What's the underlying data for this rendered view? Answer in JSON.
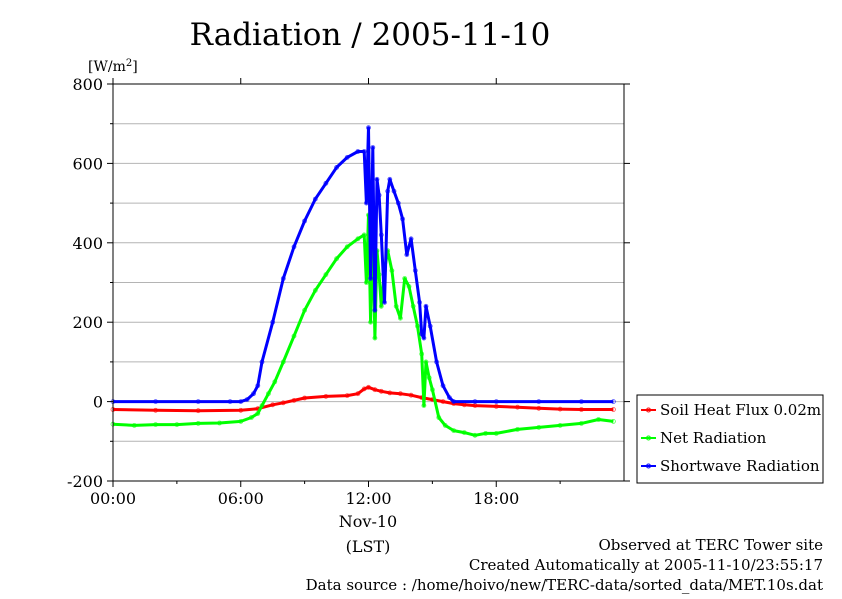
{
  "chart_data": {
    "type": "line",
    "title": "Radiation / 2005-11-10",
    "ylabel_prefix": "[W/m",
    "ylabel_sup": "2",
    "ylabel_suffix": "]",
    "x_ticks": [
      {
        "hour": 0,
        "label": "00:00"
      },
      {
        "hour": 6,
        "label": "06:00"
      },
      {
        "hour": 12,
        "label": "12:00"
      },
      {
        "hour": 18,
        "label": "18:00"
      }
    ],
    "x_date_label": "Nov-10",
    "x_unit_label": "(LST)",
    "xlim": [
      0,
      24
    ],
    "ylim": [
      -200,
      800
    ],
    "y_ticks": [
      -200,
      0,
      200,
      400,
      600,
      800
    ],
    "grid": true,
    "legend_position": "right",
    "series": [
      {
        "name": "Soil Heat Flux 0.02m",
        "color": "#ff0000",
        "points": [
          [
            0,
            -20
          ],
          [
            2,
            -22
          ],
          [
            4,
            -23
          ],
          [
            6,
            -22
          ],
          [
            6.8,
            -18
          ],
          [
            7.5,
            -8
          ],
          [
            8,
            -3
          ],
          [
            8.5,
            3
          ],
          [
            9,
            9
          ],
          [
            10,
            13
          ],
          [
            11,
            15
          ],
          [
            11.5,
            20
          ],
          [
            11.8,
            32
          ],
          [
            12,
            36
          ],
          [
            12.3,
            30
          ],
          [
            12.6,
            26
          ],
          [
            13,
            22
          ],
          [
            13.5,
            20
          ],
          [
            14,
            16
          ],
          [
            14.5,
            10
          ],
          [
            15,
            5
          ],
          [
            15.5,
            0
          ],
          [
            16,
            -5
          ],
          [
            16.5,
            -8
          ],
          [
            17,
            -10
          ],
          [
            18,
            -12
          ],
          [
            19,
            -14
          ],
          [
            20,
            -17
          ],
          [
            21,
            -19
          ],
          [
            22,
            -20
          ],
          [
            23.5,
            -20
          ]
        ]
      },
      {
        "name": "Net Radiation",
        "color": "#00ff00",
        "points": [
          [
            0,
            -57
          ],
          [
            1,
            -60
          ],
          [
            2,
            -58
          ],
          [
            3,
            -58
          ],
          [
            4,
            -55
          ],
          [
            5,
            -54
          ],
          [
            6,
            -50
          ],
          [
            6.5,
            -40
          ],
          [
            6.8,
            -30
          ],
          [
            7,
            -10
          ],
          [
            7.3,
            20
          ],
          [
            7.6,
            50
          ],
          [
            8,
            100
          ],
          [
            8.5,
            165
          ],
          [
            9,
            230
          ],
          [
            9.5,
            280
          ],
          [
            10,
            320
          ],
          [
            10.5,
            360
          ],
          [
            11,
            390
          ],
          [
            11.5,
            410
          ],
          [
            11.8,
            420
          ],
          [
            11.9,
            300
          ],
          [
            12,
            470
          ],
          [
            12.1,
            200
          ],
          [
            12.2,
            430
          ],
          [
            12.3,
            160
          ],
          [
            12.4,
            380
          ],
          [
            12.5,
            320
          ],
          [
            12.6,
            240
          ],
          [
            12.75,
            330
          ],
          [
            12.9,
            380
          ],
          [
            13.1,
            330
          ],
          [
            13.3,
            240
          ],
          [
            13.5,
            210
          ],
          [
            13.7,
            310
          ],
          [
            13.9,
            290
          ],
          [
            14.1,
            240
          ],
          [
            14.3,
            190
          ],
          [
            14.5,
            120
          ],
          [
            14.6,
            -10
          ],
          [
            14.7,
            100
          ],
          [
            14.85,
            60
          ],
          [
            15,
            30
          ],
          [
            15.3,
            -40
          ],
          [
            15.6,
            -60
          ],
          [
            16,
            -73
          ],
          [
            16.5,
            -78
          ],
          [
            17,
            -85
          ],
          [
            17.5,
            -80
          ],
          [
            18,
            -80
          ],
          [
            19,
            -70
          ],
          [
            20,
            -65
          ],
          [
            21,
            -60
          ],
          [
            22,
            -55
          ],
          [
            22.8,
            -45
          ],
          [
            23.5,
            -50
          ]
        ]
      },
      {
        "name": "Shortwave Radiation",
        "color": "#0000ff",
        "points": [
          [
            0,
            0
          ],
          [
            2,
            0
          ],
          [
            4,
            0
          ],
          [
            5.5,
            0
          ],
          [
            6,
            0
          ],
          [
            6.3,
            5
          ],
          [
            6.6,
            20
          ],
          [
            6.8,
            40
          ],
          [
            7,
            100
          ],
          [
            7.5,
            200
          ],
          [
            8,
            310
          ],
          [
            8.5,
            390
          ],
          [
            9,
            455
          ],
          [
            9.5,
            510
          ],
          [
            10,
            550
          ],
          [
            10.5,
            590
          ],
          [
            11,
            615
          ],
          [
            11.5,
            630
          ],
          [
            11.8,
            630
          ],
          [
            11.9,
            500
          ],
          [
            12,
            690
          ],
          [
            12.1,
            310
          ],
          [
            12.2,
            640
          ],
          [
            12.3,
            230
          ],
          [
            12.4,
            560
          ],
          [
            12.5,
            520
          ],
          [
            12.6,
            420
          ],
          [
            12.75,
            250
          ],
          [
            12.9,
            530
          ],
          [
            13,
            560
          ],
          [
            13.2,
            530
          ],
          [
            13.4,
            500
          ],
          [
            13.6,
            460
          ],
          [
            13.8,
            370
          ],
          [
            14,
            410
          ],
          [
            14.2,
            330
          ],
          [
            14.4,
            250
          ],
          [
            14.5,
            170
          ],
          [
            14.6,
            160
          ],
          [
            14.7,
            240
          ],
          [
            14.9,
            190
          ],
          [
            15.2,
            100
          ],
          [
            15.5,
            40
          ],
          [
            15.8,
            10
          ],
          [
            16,
            0
          ],
          [
            17,
            0
          ],
          [
            18,
            0
          ],
          [
            20,
            0
          ],
          [
            22,
            0
          ],
          [
            23.5,
            0
          ]
        ]
      }
    ]
  },
  "footer": {
    "observed": "Observed at TERC Tower site",
    "created": "Created Automatically at 2005-11-10/23:55:17",
    "source": "Data source : /home/hoivo/new/TERC-data/sorted_data/MET.10s.dat"
  }
}
